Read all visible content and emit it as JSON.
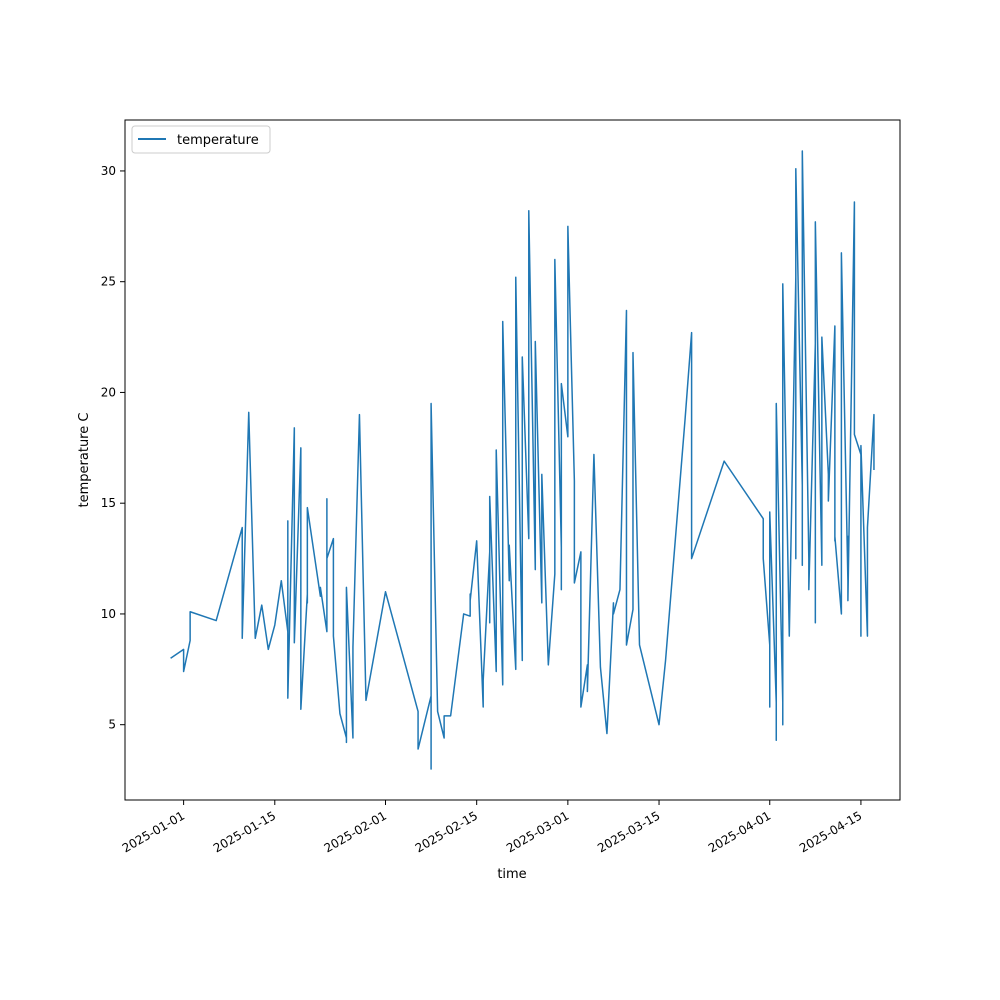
{
  "chart_data": {
    "type": "line",
    "title": "",
    "xlabel": "time",
    "ylabel": "temperature C",
    "x_axis_type": "date",
    "xlim": [
      "2024-12-23",
      "2025-04-21"
    ],
    "ylim": [
      1.6,
      32.3
    ],
    "x_ticks": [
      "2025-01-01",
      "2025-01-15",
      "2025-02-01",
      "2025-02-15",
      "2025-03-01",
      "2025-03-15",
      "2025-04-01",
      "2025-04-15"
    ],
    "y_ticks": [
      5,
      10,
      15,
      20,
      25,
      30
    ],
    "grid": false,
    "legend": {
      "position": "top-left",
      "entries": [
        "temperature"
      ]
    },
    "series": [
      {
        "name": "temperature",
        "color": "#1f77b4",
        "points": [
          [
            "2024-12-30",
            8.0
          ],
          [
            "2025-01-01",
            8.4
          ],
          [
            "2025-01-01",
            7.4
          ],
          [
            "2025-01-02",
            8.8
          ],
          [
            "2025-01-02",
            10.1
          ],
          [
            "2025-01-06",
            9.7
          ],
          [
            "2025-01-10",
            13.9
          ],
          [
            "2025-01-10",
            8.9
          ],
          [
            "2025-01-11",
            19.1
          ],
          [
            "2025-01-12",
            8.9
          ],
          [
            "2025-01-13",
            10.4
          ],
          [
            "2025-01-14",
            8.4
          ],
          [
            "2025-01-15",
            9.5
          ],
          [
            "2025-01-16",
            11.5
          ],
          [
            "2025-01-17",
            9.2
          ],
          [
            "2025-01-17",
            14.2
          ],
          [
            "2025-01-17",
            6.2
          ],
          [
            "2025-01-18",
            18.4
          ],
          [
            "2025-01-18",
            8.7
          ],
          [
            "2025-01-19",
            17.5
          ],
          [
            "2025-01-19",
            5.7
          ],
          [
            "2025-01-20",
            10.9
          ],
          [
            "2025-01-20",
            10.5
          ],
          [
            "2025-01-20",
            14.8
          ],
          [
            "2025-01-22",
            10.8
          ],
          [
            "2025-01-22",
            11.2
          ],
          [
            "2025-01-23",
            9.2
          ],
          [
            "2025-01-23",
            15.2
          ],
          [
            "2025-01-23",
            12.5
          ],
          [
            "2025-01-24",
            13.4
          ],
          [
            "2025-01-24",
            9.0
          ],
          [
            "2025-01-25",
            5.5
          ],
          [
            "2025-01-26",
            4.4
          ],
          [
            "2025-01-26",
            4.2
          ],
          [
            "2025-01-26",
            11.2
          ],
          [
            "2025-01-27",
            4.4
          ],
          [
            "2025-01-27",
            8.5
          ],
          [
            "2025-01-28",
            19.0
          ],
          [
            "2025-01-29",
            6.1
          ],
          [
            "2025-02-01",
            11.0
          ],
          [
            "2025-02-06",
            5.6
          ],
          [
            "2025-02-06",
            3.9
          ],
          [
            "2025-02-08",
            6.3
          ],
          [
            "2025-02-08",
            3.0
          ],
          [
            "2025-02-08",
            19.5
          ],
          [
            "2025-02-09",
            5.6
          ],
          [
            "2025-02-10",
            4.4
          ],
          [
            "2025-02-10",
            5.4
          ],
          [
            "2025-02-11",
            5.4
          ],
          [
            "2025-02-13",
            10.0
          ],
          [
            "2025-02-14",
            9.9
          ],
          [
            "2025-02-14",
            10.9
          ],
          [
            "2025-02-14",
            10.6
          ],
          [
            "2025-02-15",
            13.3
          ],
          [
            "2025-02-16",
            5.8
          ],
          [
            "2025-02-16",
            7.0
          ],
          [
            "2025-02-17",
            12.8
          ],
          [
            "2025-02-17",
            9.6
          ],
          [
            "2025-02-17",
            15.3
          ],
          [
            "2025-02-18",
            7.4
          ],
          [
            "2025-02-18",
            17.4
          ],
          [
            "2025-02-19",
            6.8
          ],
          [
            "2025-02-19",
            23.2
          ],
          [
            "2025-02-20",
            11.5
          ],
          [
            "2025-02-20",
            13.1
          ],
          [
            "2025-02-21",
            7.5
          ],
          [
            "2025-02-21",
            25.2
          ],
          [
            "2025-02-22",
            7.9
          ],
          [
            "2025-02-22",
            21.6
          ],
          [
            "2025-02-23",
            13.4
          ],
          [
            "2025-02-23",
            28.2
          ],
          [
            "2025-02-24",
            12.0
          ],
          [
            "2025-02-24",
            22.3
          ],
          [
            "2025-02-25",
            10.5
          ],
          [
            "2025-02-25",
            16.3
          ],
          [
            "2025-02-26",
            7.7
          ],
          [
            "2025-02-27",
            11.8
          ],
          [
            "2025-02-27",
            26.0
          ],
          [
            "2025-02-28",
            13.0
          ],
          [
            "2025-02-28",
            11.1
          ],
          [
            "2025-02-28",
            20.4
          ],
          [
            "2025-03-01",
            18.0
          ],
          [
            "2025-03-01",
            27.5
          ],
          [
            "2025-03-02",
            16.0
          ],
          [
            "2025-03-02",
            11.4
          ],
          [
            "2025-03-03",
            12.8
          ],
          [
            "2025-03-03",
            5.8
          ],
          [
            "2025-03-04",
            7.7
          ],
          [
            "2025-03-04",
            6.5
          ],
          [
            "2025-03-05",
            17.2
          ],
          [
            "2025-03-06",
            7.6
          ],
          [
            "2025-03-07",
            4.6
          ],
          [
            "2025-03-08",
            10.5
          ],
          [
            "2025-03-08",
            10.0
          ],
          [
            "2025-03-09",
            11.1
          ],
          [
            "2025-03-10",
            23.7
          ],
          [
            "2025-03-10",
            8.6
          ],
          [
            "2025-03-11",
            10.2
          ],
          [
            "2025-03-11",
            21.8
          ],
          [
            "2025-03-12",
            8.6
          ],
          [
            "2025-03-15",
            5.0
          ],
          [
            "2025-03-16",
            7.9
          ],
          [
            "2025-03-19",
            18.8
          ],
          [
            "2025-03-20",
            22.7
          ],
          [
            "2025-03-20",
            12.5
          ],
          [
            "2025-03-25",
            16.9
          ],
          [
            "2025-03-31",
            14.3
          ],
          [
            "2025-03-31",
            12.5
          ],
          [
            "2025-04-01",
            8.6
          ],
          [
            "2025-04-01",
            12.5
          ],
          [
            "2025-04-01",
            5.8
          ],
          [
            "2025-04-01",
            14.6
          ],
          [
            "2025-04-02",
            6.0
          ],
          [
            "2025-04-02",
            4.3
          ],
          [
            "2025-04-02",
            19.5
          ],
          [
            "2025-04-03",
            6.0
          ],
          [
            "2025-04-03",
            23.8
          ],
          [
            "2025-04-03",
            5.0
          ],
          [
            "2025-04-03",
            24.9
          ],
          [
            "2025-04-04",
            9.0
          ],
          [
            "2025-04-05",
            25.2
          ],
          [
            "2025-04-05",
            12.5
          ],
          [
            "2025-04-05",
            13.5
          ],
          [
            "2025-04-05",
            30.1
          ],
          [
            "2025-04-06",
            15.8
          ],
          [
            "2025-04-06",
            12.2
          ],
          [
            "2025-04-06",
            30.9
          ],
          [
            "2025-04-07",
            12.5
          ],
          [
            "2025-04-07",
            11.1
          ],
          [
            "2025-04-08",
            22.2
          ],
          [
            "2025-04-08",
            9.6
          ],
          [
            "2025-04-08",
            27.7
          ],
          [
            "2025-04-09",
            12.2
          ],
          [
            "2025-04-09",
            22.5
          ],
          [
            "2025-04-10",
            16.3
          ],
          [
            "2025-04-10",
            15.1
          ],
          [
            "2025-04-11",
            23.0
          ],
          [
            "2025-04-11",
            13.3
          ],
          [
            "2025-04-11",
            13.5
          ],
          [
            "2025-04-12",
            10.0
          ],
          [
            "2025-04-12",
            26.3
          ],
          [
            "2025-04-13",
            11.5
          ],
          [
            "2025-04-13",
            13.5
          ],
          [
            "2025-04-13",
            10.6
          ],
          [
            "2025-04-14",
            28.6
          ],
          [
            "2025-04-14",
            18.1
          ],
          [
            "2025-04-15",
            17.2
          ],
          [
            "2025-04-15",
            9.0
          ],
          [
            "2025-04-15",
            17.6
          ],
          [
            "2025-04-16",
            9.0
          ],
          [
            "2025-04-16",
            13.9
          ],
          [
            "2025-04-17",
            19.0
          ],
          [
            "2025-04-17",
            16.5
          ]
        ]
      }
    ]
  }
}
